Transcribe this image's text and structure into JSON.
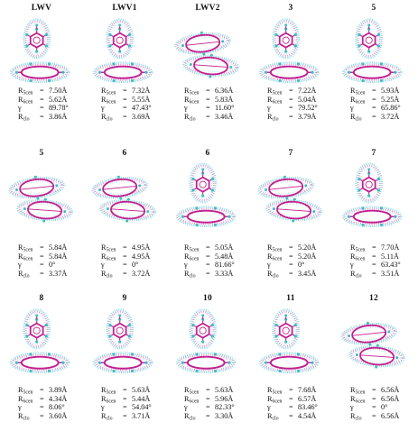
{
  "panels": [
    {
      "title": "LWV",
      "arrangement": "T",
      "r5": "7.50Å",
      "r6": "5.62Å",
      "gamma": "89.78°",
      "rclo": "3.86Å"
    },
    {
      "title": "LWV1",
      "arrangement": "T",
      "r5": "7.32Å",
      "r6": "5.55Å",
      "gamma": "47.43°",
      "rclo": "3.69Å"
    },
    {
      "title": "LWV2",
      "arrangement": "P",
      "r5": "6.36Å",
      "r6": "5.83Å",
      "gamma": "11.60°",
      "rclo": "3.46Å"
    },
    {
      "title": "3",
      "arrangement": "T",
      "r5": "7.22Å",
      "r6": "5.04Å",
      "gamma": "79.52°",
      "rclo": "3.79Å"
    },
    {
      "title": "5",
      "arrangement": "T",
      "r5": "5.93Å",
      "r6": "5.25Å",
      "gamma": "65.86°",
      "rclo": "3.72Å"
    },
    {
      "title": "5",
      "arrangement": "P",
      "r5": "5.84Å",
      "r6": "5.84Å",
      "gamma": "0°",
      "rclo": "3.37Å"
    },
    {
      "title": "6",
      "arrangement": "P",
      "r5": "4.95Å",
      "r6": "4.95Å",
      "gamma": "0°",
      "rclo": "3.72Å"
    },
    {
      "title": "6",
      "arrangement": "T",
      "r5": "5.05Å",
      "r6": "5.48Å",
      "gamma": "81.66°",
      "rclo": "3.33Å"
    },
    {
      "title": "7",
      "arrangement": "P",
      "r5": "5.20Å",
      "r6": "5.20Å",
      "gamma": "0°",
      "rclo": "3.45Å"
    },
    {
      "title": "7",
      "arrangement": "T",
      "r5": "7.70Å",
      "r6": "5.11Å",
      "gamma": "63.43°",
      "rclo": "3.51Å"
    },
    {
      "title": "8",
      "arrangement": "T",
      "r5": "3.89Å",
      "r6": "4.34Å",
      "gamma": "8.06°",
      "rclo": "3.60Å"
    },
    {
      "title": "9",
      "arrangement": "T",
      "r5": "5.63Å",
      "r6": "5.44Å",
      "gamma": "54.04°",
      "rclo": "3.71Å"
    },
    {
      "title": "10",
      "arrangement": "T",
      "r5": "5.63Å",
      "r6": "5.96Å",
      "gamma": "82.33°",
      "rclo": "3.30Å"
    },
    {
      "title": "11",
      "arrangement": "T",
      "r5": "7.68Å",
      "r6": "6.57Å",
      "gamma": "83.46°",
      "rclo": "4.54Å"
    },
    {
      "title": "12",
      "arrangement": "P",
      "r5": "6.56Å",
      "r6": "6.56Å",
      "gamma": "0°",
      "rclo": "6.56Å"
    }
  ],
  "labels": {
    "r5_main": "R",
    "r5_sub": "5cen",
    "r6_main": "R",
    "r6_sub": "6cen",
    "gamma": "γ",
    "rclo_main": "R",
    "rclo_sub": "clo",
    "equals": "="
  },
  "colors": {
    "molecule": "#c0208e",
    "atom": "#3fbcc4",
    "surface_cyan": "#7fd3dc",
    "surface_pink": "#d98fd0"
  }
}
